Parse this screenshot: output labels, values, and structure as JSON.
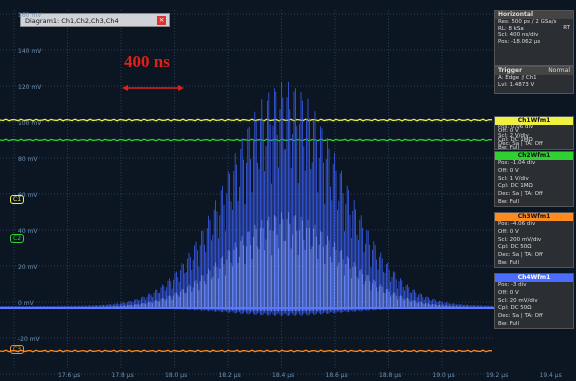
{
  "tab": {
    "title": "Diagram1: Ch1,Ch2,Ch3,Ch4"
  },
  "annotation": "400 ns",
  "y_axis_labels": [
    "160 mV",
    "140 mV",
    "120 mV",
    "100 mV",
    "80 mV",
    "60 mV",
    "40 mV",
    "20 mV",
    "0 mV",
    "-20 mV"
  ],
  "x_axis_labels": [
    "17.6 µs",
    "17.8 µs",
    "18.0 µs",
    "18.2 µs",
    "18.4 µs",
    "18.6 µs",
    "18.8 µs",
    "19.0 µs",
    "19.2 µs",
    "19.4 µs"
  ],
  "channel_markers": [
    "C1",
    "C2",
    "C3"
  ],
  "horizontal": {
    "title": "Horizontal",
    "lines": [
      "Res: 500 ps / 2 GSa/s",
      "RL: 8 kSa",
      "Scl: 400 ns/div",
      "Pos: -18.062 µs"
    ],
    "mode": "RT"
  },
  "trigger": {
    "title": "Trigger",
    "mode": "Normal",
    "lines": [
      "A:  Edge  ⮥ Ch1",
      "Lvl: 1.4873 V"
    ]
  },
  "channels": [
    {
      "title": "Ch1Wfm1",
      "lines": [
        "Pos: 0.06 div",
        "Off: 0 V",
        "Scl: 2 V/div",
        "Cpl: DC 1MΩ",
        "Dec: Sa | TA: Off",
        "Bw: Full"
      ]
    },
    {
      "title": "Ch2Wfm1",
      "lines": [
        "Pos: -1.04 div",
        "Off: 0 V",
        "Scl: 1 V/div",
        "Cpl: DC 1MΩ",
        "Dec: Sa | TA: Off",
        "Bw: Full"
      ]
    },
    {
      "title": "Ch3Wfm1",
      "lines": [
        "Pos: -4.06 div",
        "Off: 0 V",
        "Scl: 200 mV/div",
        "Cpl: DC 50Ω",
        "Dec: Sa | TA: Off",
        "Bw: Full"
      ]
    },
    {
      "title": "Ch4Wfm1",
      "lines": [
        "Pos: -3 div",
        "Off: 0 V",
        "Scl: 20 mV/div",
        "Cpl: DC 50Ω",
        "Dec: Sa | TA: Off",
        "Bw: Full"
      ]
    }
  ]
}
